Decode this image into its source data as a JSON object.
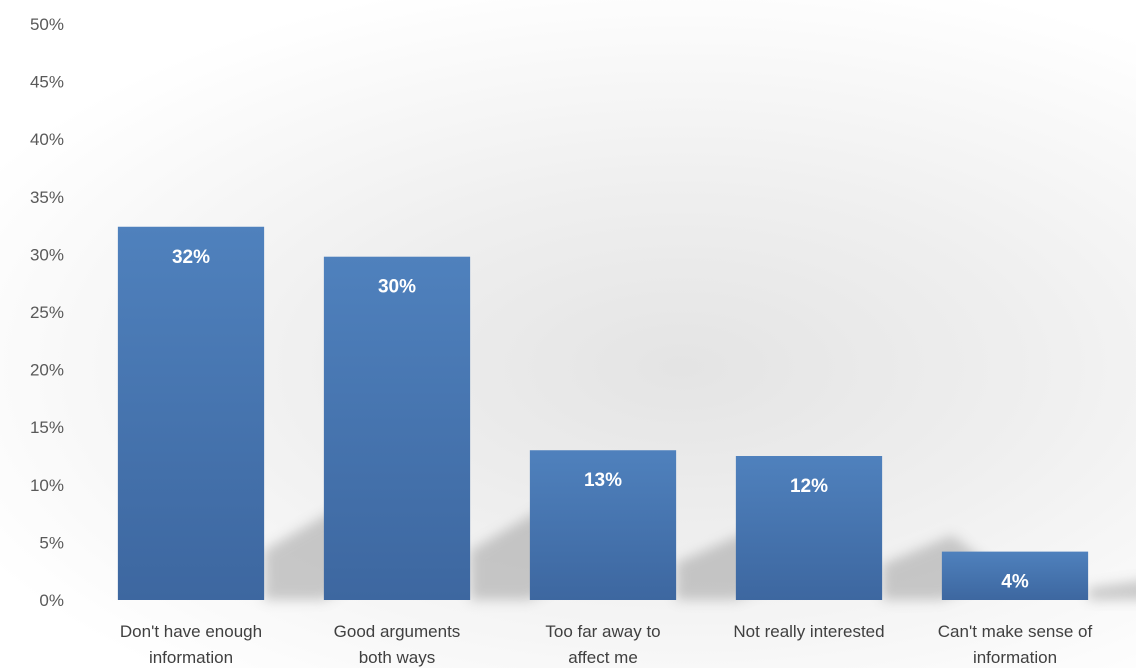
{
  "chart_data": {
    "type": "bar",
    "title": "",
    "xlabel": "",
    "ylabel": "",
    "categories": [
      [
        "Don't have enough",
        "information"
      ],
      [
        "Good arguments",
        "both ways"
      ],
      [
        "Too far away to",
        "affect me"
      ],
      [
        "Not really interested"
      ],
      [
        "Can't make sense of",
        "information"
      ]
    ],
    "values": [
      32.4,
      29.8,
      13.0,
      12.5,
      4.2
    ],
    "data_labels": [
      "32%",
      "30%",
      "13%",
      "12%",
      "4%"
    ],
    "ylim": [
      0,
      50
    ],
    "yticks": [
      0,
      5,
      10,
      15,
      20,
      25,
      30,
      35,
      40,
      45,
      50
    ],
    "ytick_labels": [
      "0%",
      "5%",
      "10%",
      "15%",
      "20%",
      "25%",
      "30%",
      "35%",
      "40%",
      "45%",
      "50%"
    ],
    "grid": false,
    "legend": "none",
    "colors": {
      "bar_top": "#4f81bd",
      "bar_bottom": "#3e6aa3",
      "label": "#ffffff",
      "axis_text": "#595959"
    }
  }
}
